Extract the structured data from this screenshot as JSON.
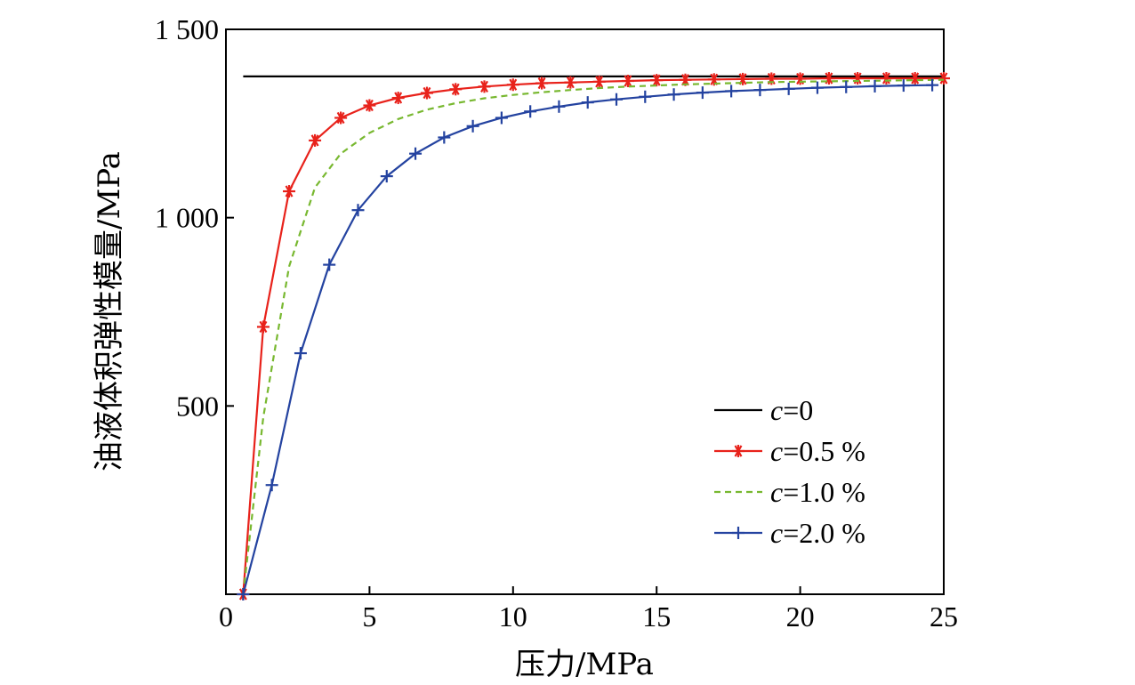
{
  "chart_data": {
    "type": "line",
    "xlabel": "压力/MPa",
    "ylabel": "油液体积弹性模量/MPa",
    "xlim": [
      0,
      25
    ],
    "ylim": [
      0,
      1500
    ],
    "x_ticks": [
      0,
      5,
      10,
      15,
      20,
      25
    ],
    "x_tick_labels": [
      "0",
      "5",
      "10",
      "15",
      "20",
      "25"
    ],
    "y_ticks": [
      500,
      1000,
      1500
    ],
    "y_tick_labels": [
      "500",
      "1 000",
      "1 500"
    ],
    "grid": false,
    "legend_position": "lower-right",
    "series": [
      {
        "name": "c=0",
        "name_italic": "c",
        "name_rest": "=0",
        "color": "#000000",
        "dash": "solid",
        "marker": "none",
        "x": [
          0.6,
          25
        ],
        "y": [
          1375,
          1375
        ]
      },
      {
        "name": "c=0.5 %",
        "name_italic": "c",
        "name_rest": "=0.5 %",
        "color": "#e8221b",
        "dash": "solid",
        "marker": "asterisk",
        "x": [
          0.6,
          1.3,
          2.2,
          3.1,
          4.0,
          5.0,
          6.0,
          7.0,
          8.0,
          9.0,
          10.0,
          11.0,
          12.0,
          13.0,
          14.0,
          15.0,
          16.0,
          17.0,
          18.0,
          19.0,
          20.0,
          21.0,
          22.0,
          23.0,
          24.0,
          25.0
        ],
        "y": [
          0,
          710,
          1070,
          1205,
          1265,
          1298,
          1318,
          1331,
          1341,
          1348,
          1353,
          1357,
          1359,
          1361,
          1363,
          1365,
          1366,
          1367,
          1368,
          1369,
          1369,
          1370,
          1370,
          1370,
          1370,
          1370
        ]
      },
      {
        "name": "c=1.0 %",
        "name_italic": "c",
        "name_rest": "=1.0 %",
        "color": "#78b830",
        "dash": "dashed",
        "marker": "none",
        "x": [
          0.6,
          1.3,
          2.2,
          3.1,
          4.0,
          5.0,
          6.0,
          7.0,
          8.0,
          9.0,
          10.0,
          11.0,
          12.0,
          13.0,
          14.0,
          15.0,
          16.0,
          17.0,
          18.0,
          19.0,
          20.0,
          21.0,
          22.0,
          23.0,
          24.0,
          25.0
        ],
        "y": [
          0,
          470,
          870,
          1080,
          1170,
          1225,
          1262,
          1287,
          1304,
          1317,
          1326,
          1333,
          1339,
          1344,
          1348,
          1351,
          1354,
          1356,
          1358,
          1360,
          1361,
          1362,
          1363,
          1364,
          1365,
          1366
        ]
      },
      {
        "name": "c=2.0 %",
        "name_italic": "c",
        "name_rest": "=2.0 %",
        "color": "#2443a0",
        "dash": "solid",
        "marker": "plus",
        "x": [
          0.6,
          1.6,
          2.6,
          3.6,
          4.6,
          5.6,
          6.6,
          7.6,
          8.6,
          9.6,
          10.6,
          11.6,
          12.6,
          13.6,
          14.6,
          15.6,
          16.6,
          17.6,
          18.6,
          19.6,
          20.6,
          21.6,
          22.6,
          23.6,
          24.6
        ],
        "y": [
          0,
          290,
          640,
          875,
          1020,
          1110,
          1170,
          1213,
          1243,
          1265,
          1282,
          1295,
          1306,
          1314,
          1321,
          1327,
          1332,
          1336,
          1339,
          1342,
          1345,
          1347,
          1349,
          1351,
          1352
        ]
      }
    ]
  }
}
